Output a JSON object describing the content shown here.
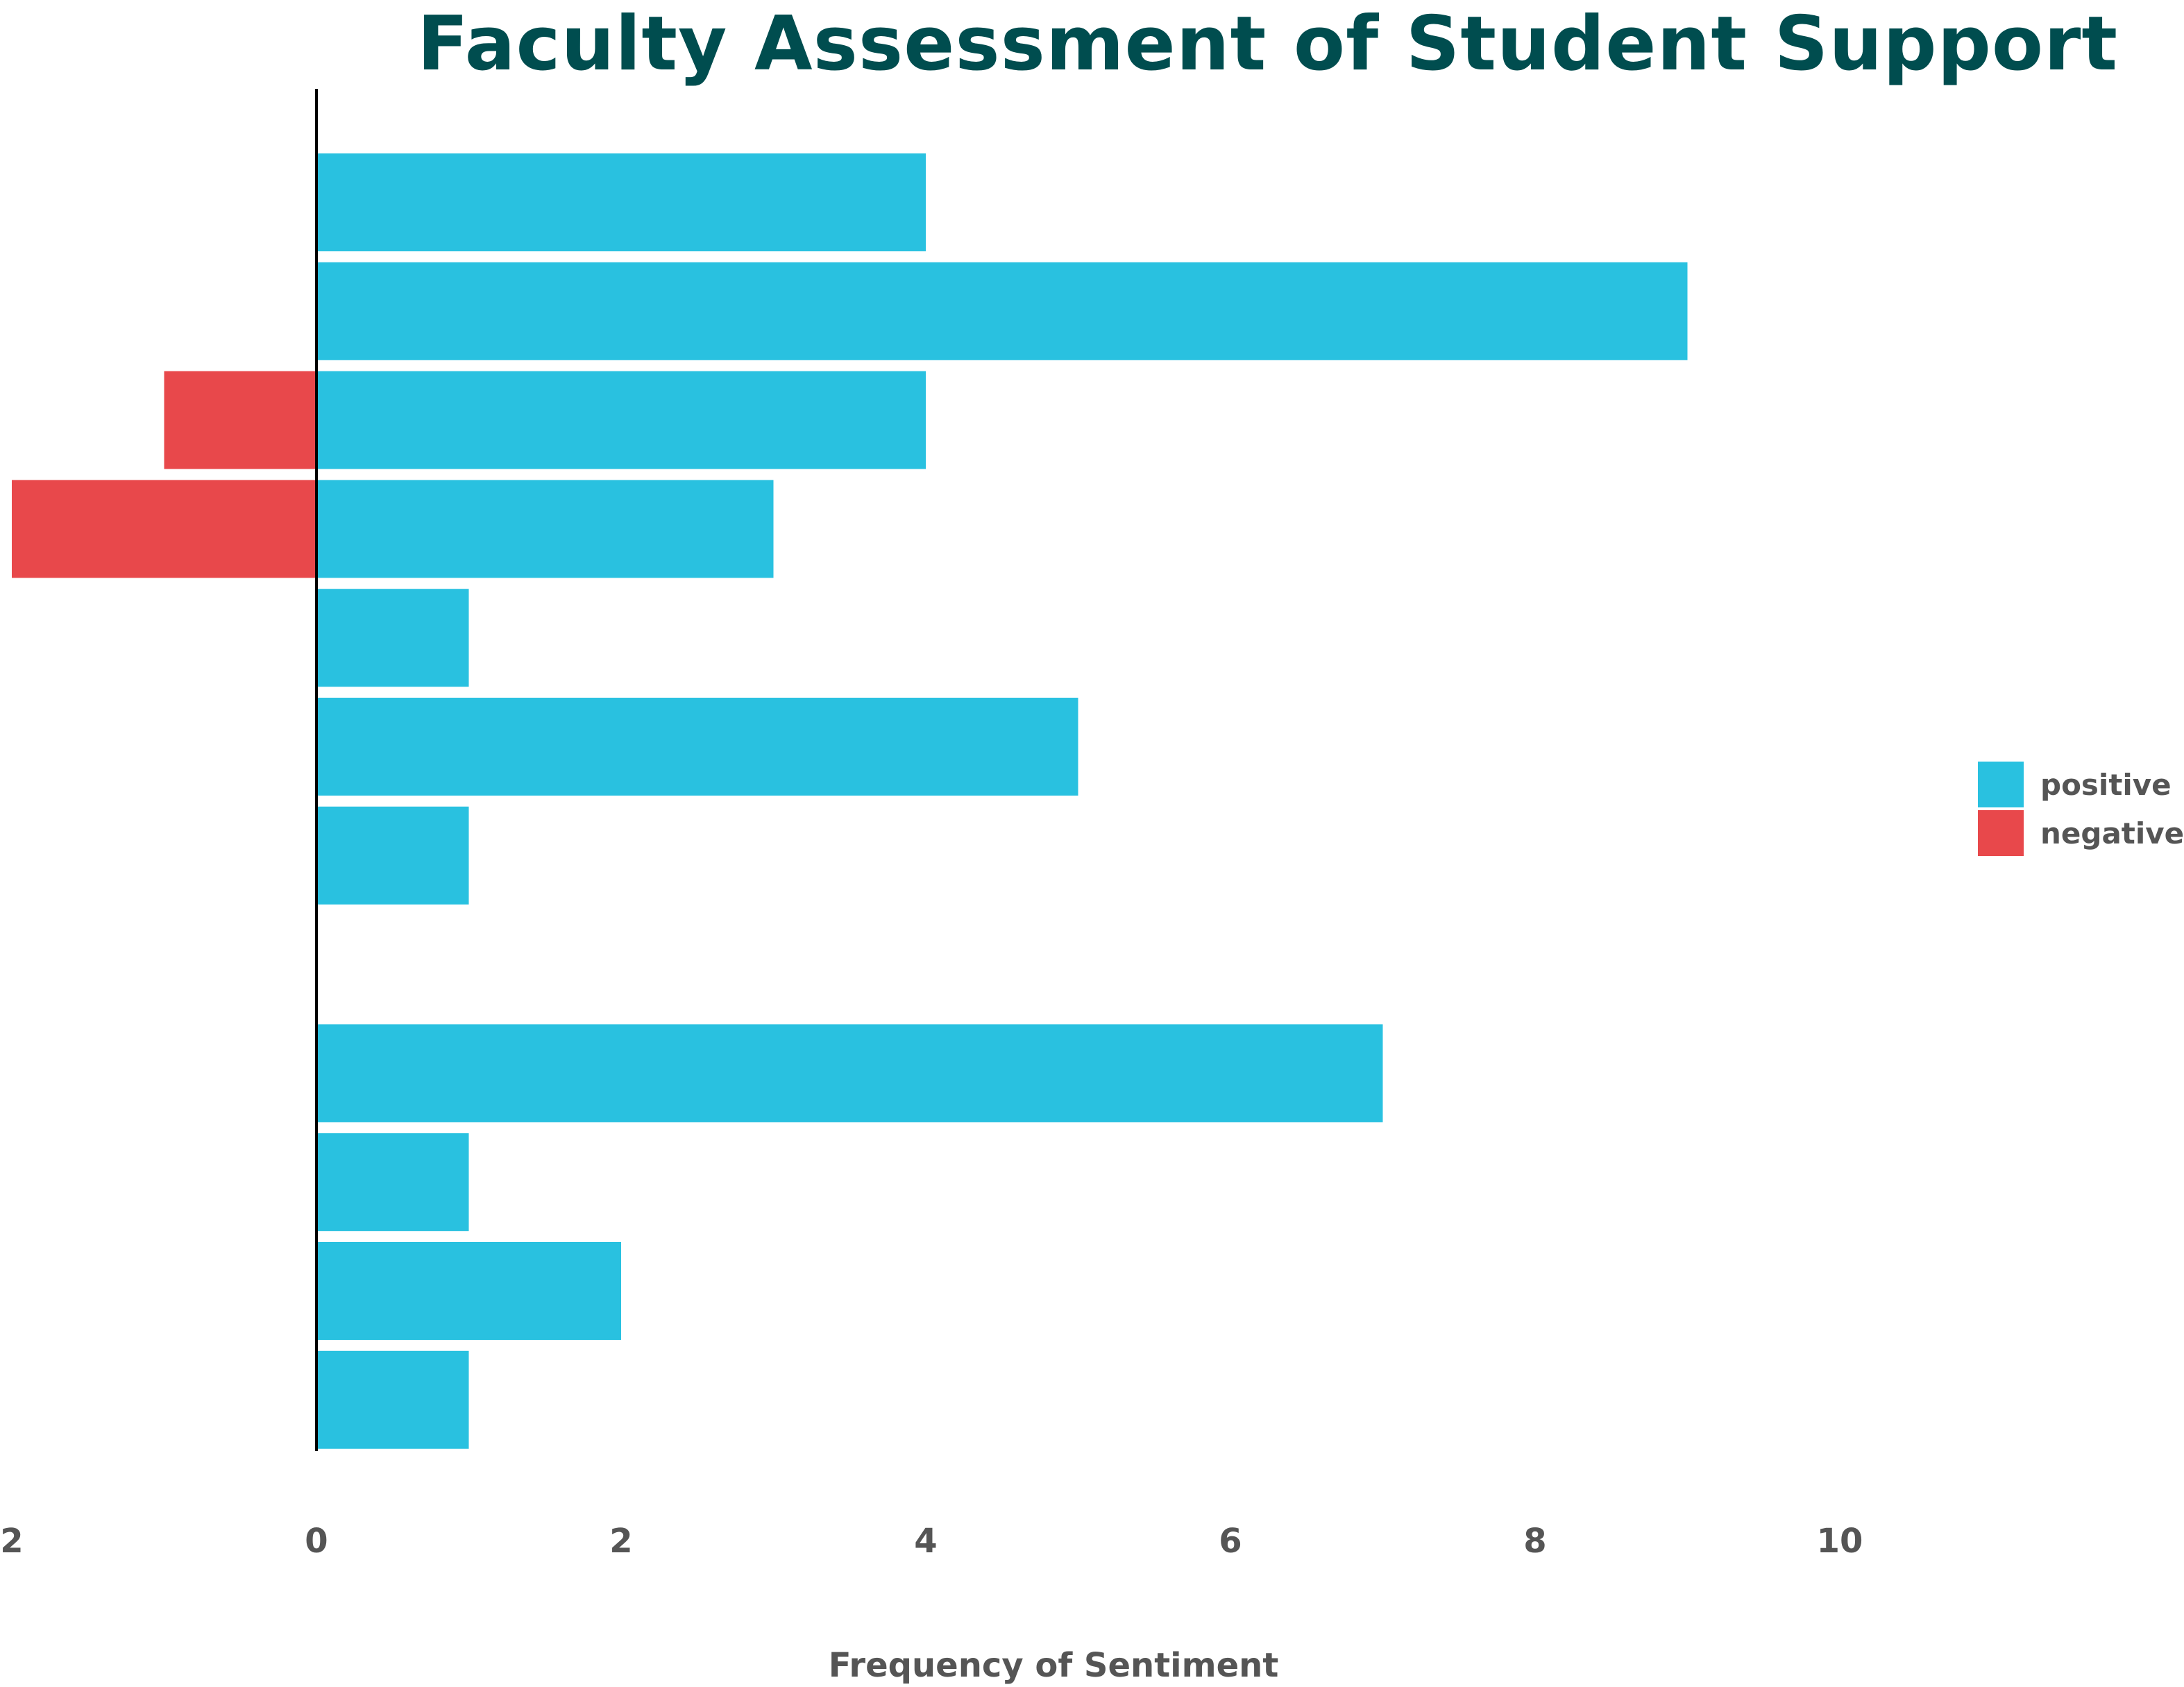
{
  "chart_data": {
    "type": "bar",
    "orientation": "horizontal",
    "stacked": true,
    "title": "Faculty Assessment of Student Support",
    "xlabel": "Frequency of Sentiment",
    "ylabel": "",
    "xlim": [
      -2,
      11
    ],
    "x_ticks": [
      "2",
      "0",
      "2",
      "4",
      "6",
      "8",
      "10"
    ],
    "x_tick_values": [
      -2,
      0,
      2,
      4,
      6,
      8,
      10
    ],
    "categories": [
      "",
      "",
      "",
      "",
      "",
      "",
      "",
      "",
      "",
      "",
      "",
      ""
    ],
    "series": [
      {
        "name": "positive",
        "color": "#29C1E0",
        "values": [
          4,
          9,
          4,
          3,
          1,
          5,
          1,
          0,
          7,
          1,
          2,
          1
        ]
      },
      {
        "name": "negative",
        "color": "#E8484B",
        "values": [
          0,
          0,
          -1,
          -2,
          0,
          0,
          0,
          0,
          0,
          0,
          0,
          0
        ]
      }
    ],
    "legend": {
      "position": "right",
      "entries": [
        "positive",
        "negative"
      ]
    },
    "grid": false
  },
  "colors": {
    "title": "#004D4F",
    "text": "#555555",
    "axis": "#000000"
  }
}
